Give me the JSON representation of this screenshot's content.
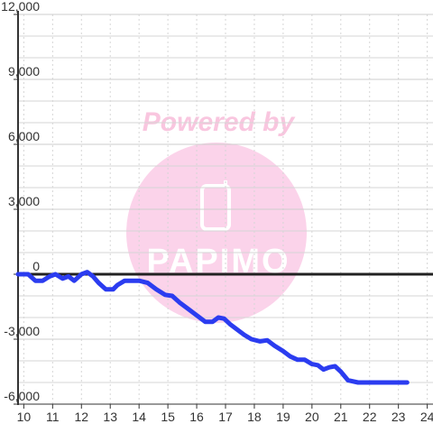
{
  "chart_data": {
    "type": "line",
    "title": "",
    "xlabel": "",
    "ylabel": "",
    "xlim": [
      9.8,
      24.2
    ],
    "ylim": [
      -6000,
      12000
    ],
    "x_ticks": [
      10,
      11,
      12,
      13,
      14,
      15,
      16,
      17,
      18,
      19,
      20,
      21,
      22,
      23,
      24
    ],
    "y_ticks": [
      -6000,
      -3000,
      0,
      3000,
      6000,
      9000,
      12000
    ],
    "x_tick_labels": [
      "10",
      "11",
      "12",
      "13",
      "14",
      "15",
      "16",
      "17",
      "18",
      "19",
      "20",
      "21",
      "22",
      "23",
      "24"
    ],
    "y_tick_labels": [
      "-6,000",
      "-3,000",
      "0",
      "3,000",
      "6,000",
      "9,000",
      "12,000"
    ],
    "grid": true,
    "series": [
      {
        "color": "#2b3cf0",
        "x": [
          9.8,
          10.15,
          10.4,
          10.65,
          10.9,
          11.1,
          11.35,
          11.55,
          11.75,
          12.0,
          12.2,
          12.4,
          12.6,
          12.85,
          13.1,
          13.25,
          13.5,
          13.75,
          14.0,
          14.3,
          14.6,
          14.9,
          15.15,
          15.4,
          15.7,
          16.0,
          16.3,
          16.55,
          16.75,
          16.95,
          17.15,
          17.4,
          17.65,
          17.9,
          18.2,
          18.45,
          18.7,
          19.0,
          19.25,
          19.5,
          19.75,
          20.0,
          20.2,
          20.4,
          20.6,
          20.8,
          21.0,
          21.25,
          21.6,
          22.0,
          22.6,
          23.3
        ],
        "y": [
          0,
          0,
          -300,
          -300,
          -100,
          0,
          -200,
          -100,
          -300,
          0,
          100,
          -100,
          -400,
          -700,
          -700,
          -500,
          -300,
          -300,
          -300,
          -400,
          -700,
          -950,
          -1000,
          -1300,
          -1600,
          -1900,
          -2200,
          -2200,
          -2000,
          -2050,
          -2300,
          -2550,
          -2800,
          -3000,
          -3100,
          -3050,
          -3300,
          -3550,
          -3800,
          -3950,
          -3950,
          -4150,
          -4200,
          -4400,
          -4300,
          -4250,
          -4500,
          -4900,
          -5000,
          -5000,
          -5000,
          -5000
        ]
      }
    ]
  },
  "watermark": {
    "title": "Powered by",
    "word": "PAPIMO",
    "circle_color": "#fbd3ea",
    "text_color": "#f9c6df"
  },
  "colors": {
    "line": "#2b3cf0",
    "zero_line": "#222222",
    "grid_major": "#cccccc",
    "grid_minor": "#d6d6d6",
    "axis": "#333333"
  }
}
